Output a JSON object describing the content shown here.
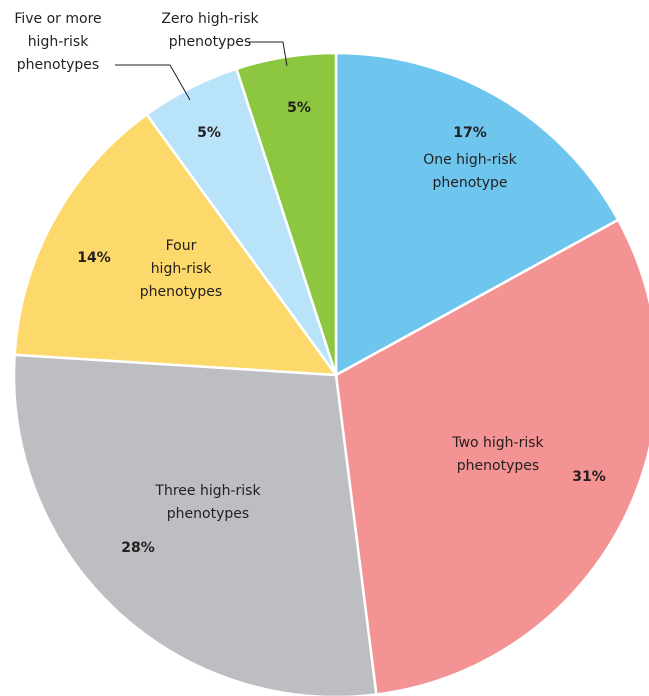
{
  "chart_data": {
    "type": "pie",
    "categories": [
      "One high-risk\nphenotype",
      "Two high-risk\nphenotypes",
      "Three high-risk\nphenotypes",
      "Four\nhigh-risk\nphenotypes",
      "Five or more\nhigh-risk\nphenotypes",
      "Zero high-risk\nphenotypes"
    ],
    "values": [
      17,
      31,
      28,
      14,
      5,
      5
    ],
    "value_labels": [
      "17%",
      "31%",
      "28%",
      "14%",
      "5%",
      "5%"
    ],
    "colors": [
      "#6ec6ee",
      "#f49393",
      "#bdbec2",
      "#fcd96a",
      "#b9e3f8",
      "#8dc63f"
    ]
  }
}
